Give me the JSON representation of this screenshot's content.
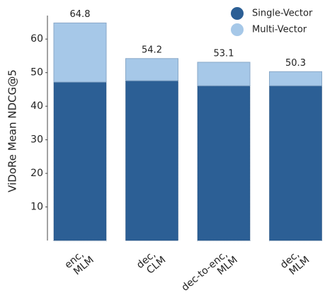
{
  "chart_data": {
    "type": "stacked_bar",
    "y_label": "ViDoRe Mean NDCG@5",
    "categories": [
      [
        "enc,",
        "MLM"
      ],
      [
        "dec,",
        "CLM"
      ],
      [
        "dec-to-enc,",
        "MLM"
      ],
      [
        "dec,",
        "MLM"
      ]
    ],
    "series": [
      {
        "name": "Single-Vector",
        "color": "#2c5f95",
        "values": [
          47.2,
          47.6,
          46.1,
          46.1
        ]
      },
      {
        "name": "Multi-Vector",
        "color": "#a6c8e8",
        "values": [
          17.6,
          6.6,
          7.0,
          4.2
        ]
      }
    ],
    "totals": [
      64.8,
      54.2,
      53.1,
      50.3
    ],
    "ylim": [
      0,
      67
    ],
    "yticks": [
      10,
      20,
      30,
      40,
      50,
      60
    ],
    "legend": "top-right"
  }
}
